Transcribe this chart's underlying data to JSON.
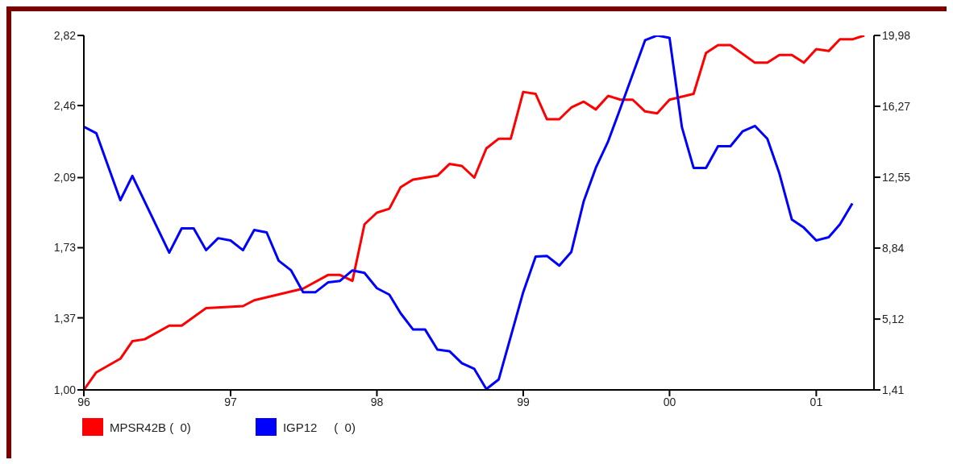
{
  "chart_data": {
    "type": "line",
    "legend": "bottom",
    "xlim": [
      "1996-01",
      "2001-05-25"
    ],
    "xticks": [
      {
        "value": "1996-01",
        "label": "96"
      },
      {
        "value": "1997-01",
        "label": "97"
      },
      {
        "value": "1998-01",
        "label": "98"
      },
      {
        "value": "1999-01",
        "label": "99"
      },
      {
        "value": "2000-01",
        "label": "00"
      },
      {
        "value": "2001-01",
        "label": "01"
      }
    ],
    "ylim": [
      1.0,
      2.82
    ],
    "yticks": [
      {
        "value": 1.0,
        "label": "1,00"
      },
      {
        "value": 1.37,
        "label": "1,37"
      },
      {
        "value": 1.73,
        "label": "1,73"
      },
      {
        "value": 2.09,
        "label": "2,09"
      },
      {
        "value": 2.46,
        "label": "2,46"
      },
      {
        "value": 2.82,
        "label": "2,82"
      }
    ],
    "y2lim": [
      1.41,
      19.98
    ],
    "y2ticks": [
      {
        "value": 1.41,
        "label": "1,41"
      },
      {
        "value": 5.12,
        "label": "5,12"
      },
      {
        "value": 8.84,
        "label": "8,84"
      },
      {
        "value": 12.55,
        "label": "12,55"
      },
      {
        "value": 16.27,
        "label": "16,27"
      },
      {
        "value": 19.98,
        "label": "19,98"
      }
    ],
    "series": [
      {
        "name": "MPSR42B (  0)",
        "color": "#ff0000",
        "x": [
          "1996-01",
          "1996-02",
          "1996-04",
          "1996-05",
          "1996-06",
          "1996-08",
          "1996-09",
          "1996-11",
          "1997-02",
          "1997-03",
          "1997-05",
          "1997-07",
          "1997-09",
          "1997-10",
          "1997-11",
          "1997-12",
          "1998-01",
          "1998-02",
          "1998-03",
          "1998-04",
          "1998-06",
          "1998-07",
          "1998-08",
          "1998-09",
          "1998-10",
          "1998-11",
          "1998-12",
          "1999-01",
          "1999-02",
          "1999-03",
          "1999-04",
          "1999-05",
          "1999-06",
          "1999-07",
          "1999-08",
          "1999-09",
          "1999-10",
          "1999-11",
          "1999-12",
          "2000-01",
          "2000-03",
          "2000-04",
          "2000-05",
          "2000-06",
          "2000-08",
          "2000-09",
          "2000-10",
          "2000-11",
          "2000-12",
          "2001-01",
          "2001-02",
          "2001-03",
          "2001-04",
          "2001-05"
        ],
        "values": [
          1.0,
          1.09,
          1.16,
          1.25,
          1.26,
          1.33,
          1.33,
          1.42,
          1.43,
          1.46,
          1.49,
          1.52,
          1.59,
          1.59,
          1.56,
          1.85,
          1.91,
          1.93,
          2.04,
          2.08,
          2.1,
          2.16,
          2.15,
          2.09,
          2.24,
          2.29,
          2.29,
          2.53,
          2.52,
          2.39,
          2.39,
          2.45,
          2.48,
          2.44,
          2.51,
          2.49,
          2.49,
          2.43,
          2.42,
          2.49,
          2.52,
          2.73,
          2.77,
          2.77,
          2.68,
          2.68,
          2.72,
          2.72,
          2.68,
          2.75,
          2.74,
          2.8,
          2.8,
          2.82
        ]
      },
      {
        "name": "IGP12     (  0)",
        "color": "#0000ff",
        "axis": "y2",
        "x": [
          "1996-01",
          "1996-02",
          "1996-04",
          "1996-05",
          "1996-08",
          "1996-09",
          "1996-10",
          "1996-11",
          "1996-12",
          "1997-01",
          "1997-02",
          "1997-03",
          "1997-04",
          "1997-05",
          "1997-06",
          "1997-07",
          "1997-08",
          "1997-09",
          "1997-10",
          "1997-11",
          "1997-12",
          "1998-01",
          "1998-02",
          "1998-03",
          "1998-04",
          "1998-05",
          "1998-06",
          "1998-07",
          "1998-08",
          "1998-09",
          "1998-10",
          "1998-11",
          "1999-01",
          "1999-02",
          "1999-03",
          "1999-04",
          "1999-05",
          "1999-06",
          "1999-07",
          "1999-08",
          "1999-09",
          "1999-11",
          "1999-12",
          "2000-01",
          "2000-02",
          "2000-03",
          "2000-04",
          "2000-05",
          "2000-06",
          "2000-07",
          "2000-08",
          "2000-09",
          "2000-10",
          "2000-11",
          "2000-12",
          "2001-01",
          "2001-02",
          "2001-03",
          "2001-04"
        ],
        "values": [
          15.2,
          14.86,
          11.35,
          12.62,
          8.6,
          9.87,
          9.87,
          8.73,
          9.36,
          9.24,
          8.73,
          9.79,
          9.66,
          8.18,
          7.67,
          6.53,
          6.53,
          7.04,
          7.12,
          7.67,
          7.54,
          6.74,
          6.4,
          5.43,
          4.58,
          4.58,
          3.52,
          3.44,
          2.81,
          2.51,
          1.45,
          1.96,
          6.53,
          8.39,
          8.43,
          7.92,
          8.64,
          11.3,
          13.04,
          14.44,
          16.2,
          19.73,
          19.98,
          19.85,
          15.16,
          13.04,
          13.04,
          14.18,
          14.18,
          14.95,
          15.24,
          14.57,
          12.75,
          10.34,
          9.91,
          9.24,
          9.41,
          10.08,
          11.18
        ]
      }
    ]
  }
}
